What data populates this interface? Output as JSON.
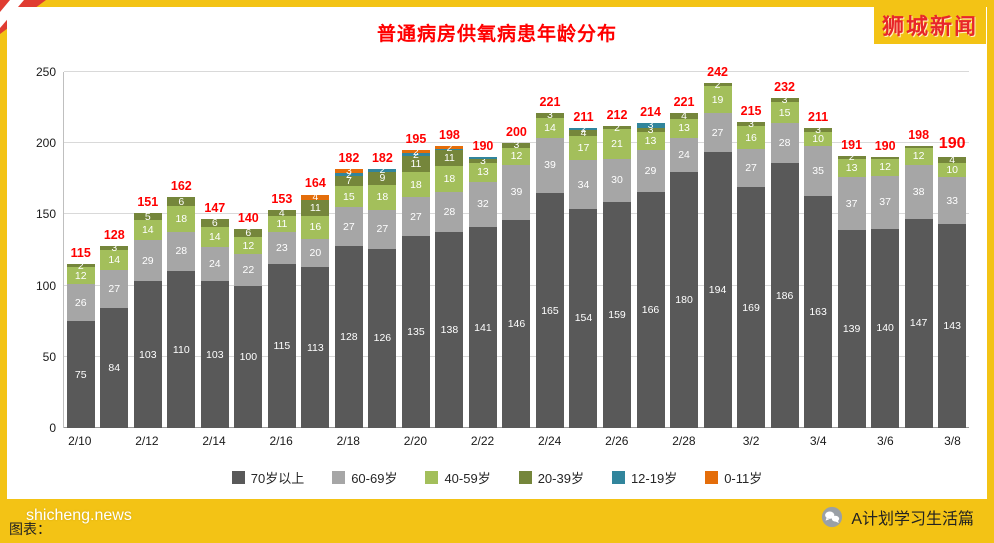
{
  "frame": {
    "logo": "狮城新闻",
    "watermark": "shicheng.news",
    "caption": "图表：",
    "account_name": "A计划学习生活篇"
  },
  "chart_data": {
    "type": "bar",
    "stacked": true,
    "title": "普通病房供氧病患年龄分布",
    "title_color": "#FF0000",
    "xlabel": "",
    "ylabel": "",
    "ylim": [
      0,
      250
    ],
    "y_ticks": [
      0,
      50,
      100,
      150,
      200,
      250
    ],
    "grid": "horizontal",
    "legend_position": "bottom",
    "total_label_color": "#FF0000",
    "categories": [
      "2/10",
      "2/11",
      "2/12",
      "2/13",
      "2/14",
      "2/15",
      "2/16",
      "2/17",
      "2/18",
      "2/19",
      "2/20",
      "2/21",
      "2/22",
      "2/23",
      "2/24",
      "2/25",
      "2/26",
      "2/27",
      "2/28",
      "3/1",
      "3/2",
      "3/3",
      "3/4",
      "3/5",
      "3/6",
      "3/7",
      "3/8"
    ],
    "x_tick_labels": [
      "2/10",
      "2/12",
      "2/14",
      "2/16",
      "2/18",
      "2/20",
      "2/22",
      "2/24",
      "2/26",
      "2/28",
      "3/2",
      "3/4",
      "3/6",
      "3/8"
    ],
    "series": [
      {
        "name": "70岁以上",
        "color": "#595959",
        "values": [
          75,
          84,
          103,
          110,
          103,
          100,
          115,
          113,
          128,
          126,
          135,
          138,
          141,
          146,
          165,
          154,
          159,
          166,
          180,
          194,
          169,
          186,
          163,
          139,
          140,
          147,
          143
        ]
      },
      {
        "name": "60-69岁",
        "color": "#a6a6a6",
        "values": [
          26,
          27,
          29,
          28,
          24,
          22,
          23,
          20,
          27,
          27,
          27,
          28,
          32,
          39,
          39,
          34,
          30,
          29,
          24,
          27,
          27,
          28,
          35,
          37,
          37,
          38,
          33
        ]
      },
      {
        "name": "40-59岁",
        "color": "#a3bf5b",
        "values": [
          12,
          14,
          14,
          18,
          14,
          12,
          11,
          16,
          15,
          18,
          18,
          18,
          13,
          12,
          14,
          17,
          21,
          13,
          13,
          19,
          16,
          15,
          10,
          13,
          12,
          12,
          10
        ]
      },
      {
        "name": "20-39岁",
        "color": "#75863b",
        "values": [
          2,
          3,
          5,
          6,
          6,
          6,
          4,
          11,
          7,
          9,
          11,
          11,
          3,
          3,
          3,
          4,
          2,
          3,
          4,
          2,
          3,
          3,
          3,
          2,
          1,
          1,
          4
        ]
      },
      {
        "name": "12-19岁",
        "color": "#31859c",
        "values": [
          0,
          0,
          0,
          0,
          0,
          0,
          0,
          0,
          2,
          2,
          2,
          1,
          1,
          0,
          0,
          2,
          0,
          3,
          0,
          0,
          0,
          0,
          0,
          0,
          0,
          0,
          0
        ]
      },
      {
        "name": "0-11岁",
        "color": "#e46d0a",
        "values": [
          0,
          0,
          0,
          0,
          0,
          0,
          0,
          4,
          3,
          0,
          2,
          2,
          0,
          0,
          0,
          0,
          0,
          0,
          0,
          0,
          0,
          0,
          0,
          0,
          0,
          0,
          0
        ]
      }
    ],
    "totals": [
      115,
      128,
      151,
      162,
      147,
      140,
      153,
      164,
      182,
      182,
      195,
      198,
      190,
      200,
      221,
      211,
      212,
      214,
      221,
      242,
      215,
      232,
      211,
      191,
      190,
      198,
      190
    ]
  }
}
